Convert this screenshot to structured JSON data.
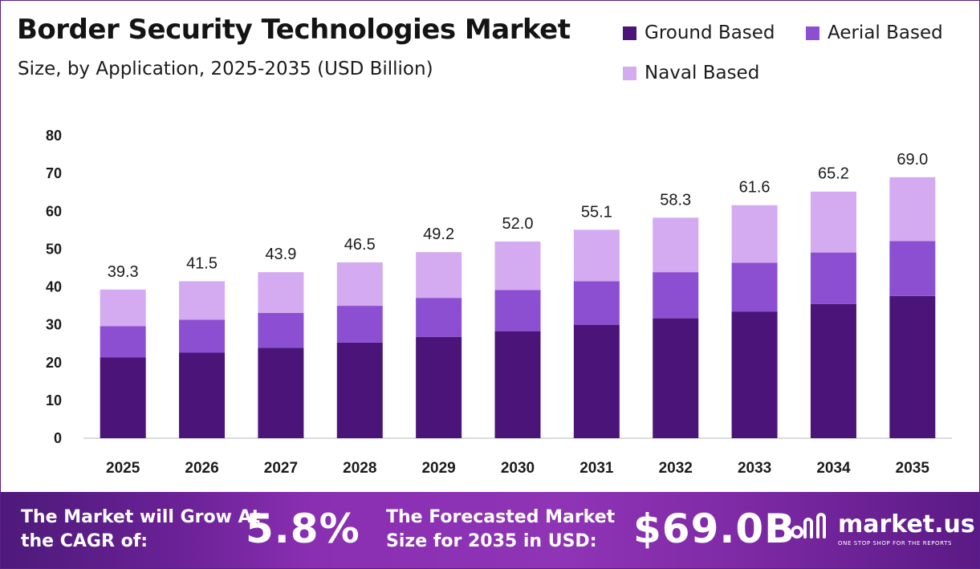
{
  "header": {
    "title": "Border Security Technologies Market",
    "subtitle": "Size, by Application, 2025-2035 (USD Billion)"
  },
  "legend": [
    {
      "label": "Ground Based",
      "color": "#4a1479"
    },
    {
      "label": "Aerial Based",
      "color": "#8c4fd1"
    },
    {
      "label": "Naval Based",
      "color": "#d4aaf0"
    }
  ],
  "chart_data": {
    "type": "bar",
    "stacked": true,
    "categories": [
      "2025",
      "2026",
      "2027",
      "2028",
      "2029",
      "2030",
      "2031",
      "2032",
      "2033",
      "2034",
      "2035"
    ],
    "series": [
      {
        "name": "Ground Based",
        "values": [
          21.4,
          22.6,
          23.9,
          25.3,
          26.8,
          28.3,
          30.0,
          31.7,
          33.5,
          35.5,
          37.6
        ]
      },
      {
        "name": "Aerial Based",
        "values": [
          8.2,
          8.7,
          9.2,
          9.7,
          10.3,
          10.9,
          11.5,
          12.2,
          12.9,
          13.6,
          14.5
        ]
      },
      {
        "name": "Naval Based",
        "values": [
          9.7,
          10.2,
          10.8,
          11.5,
          12.1,
          12.8,
          13.6,
          14.4,
          15.2,
          16.1,
          16.9
        ]
      }
    ],
    "totals": [
      "39.3",
      "41.5",
      "43.9",
      "46.5",
      "49.2",
      "52.0",
      "55.1",
      "58.3",
      "61.6",
      "65.2",
      "69.0"
    ],
    "yticks": [
      "0",
      "10",
      "20",
      "30",
      "40",
      "50",
      "60",
      "70",
      "80"
    ],
    "ylim": [
      0,
      80
    ],
    "grid": false,
    "legend_position": "top-right",
    "colors": {
      "ground": "#4a1479",
      "aerial": "#8c4fd1",
      "naval": "#d4aaf0",
      "axis": "#cfcfcf",
      "text": "#1b1b1b"
    }
  },
  "footer": {
    "cagr_label": "The Market will Grow At the CAGR of:",
    "cagr_value": "5.8%",
    "forecast_label": "The Forecasted Market Size for 2035 in USD:",
    "forecast_value": "$69.0B",
    "brand_name": "market.us",
    "brand_tagline": "ONE STOP SHOP FOR THE REPORTS",
    "band_colors": [
      "#4d1a7a",
      "#8e34b5",
      "#5a1a85"
    ]
  },
  "icons": {
    "brand": "market-us-logo-icon"
  }
}
